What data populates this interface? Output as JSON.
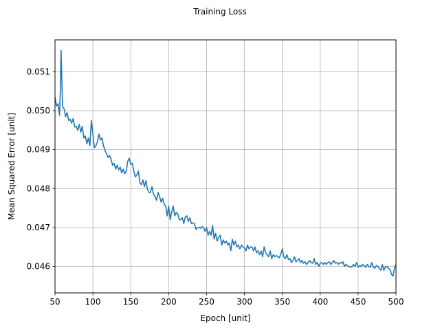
{
  "chart_data": {
    "type": "line",
    "title": "Training Loss",
    "xlabel": "Epoch [unit]",
    "ylabel": "Mean Squared Error [unit]",
    "xlim": [
      50,
      500
    ],
    "ylim": [
      0.04532,
      0.05182
    ],
    "xticks": [
      "50",
      "100",
      "150",
      "200",
      "250",
      "300",
      "350",
      "400",
      "450",
      "500"
    ],
    "yticks": [
      "0.046",
      "0.047",
      "0.048",
      "0.049",
      "0.050",
      "0.051"
    ],
    "grid": true,
    "legend": "none",
    "line_color": "#1f77b4",
    "series": [
      {
        "points": [
          [
            50,
            0.05035
          ],
          [
            52,
            0.05012
          ],
          [
            54,
            0.05018
          ],
          [
            56,
            0.04988
          ],
          [
            57,
            0.0505
          ],
          [
            58,
            0.05155
          ],
          [
            59,
            0.0508
          ],
          [
            60,
            0.0501
          ],
          [
            62,
            0.05005
          ],
          [
            64,
            0.04985
          ],
          [
            66,
            0.04995
          ],
          [
            68,
            0.04975
          ],
          [
            70,
            0.04978
          ],
          [
            72,
            0.04968
          ],
          [
            74,
            0.0498
          ],
          [
            76,
            0.04958
          ],
          [
            78,
            0.0496
          ],
          [
            80,
            0.0495
          ],
          [
            82,
            0.04965
          ],
          [
            84,
            0.04945
          ],
          [
            86,
            0.0496
          ],
          [
            88,
            0.0493
          ],
          [
            90,
            0.04935
          ],
          [
            92,
            0.04915
          ],
          [
            94,
            0.0493
          ],
          [
            96,
            0.0491
          ],
          [
            98,
            0.04975
          ],
          [
            100,
            0.0494
          ],
          [
            102,
            0.04905
          ],
          [
            104,
            0.0491
          ],
          [
            106,
            0.0492
          ],
          [
            108,
            0.0494
          ],
          [
            110,
            0.04925
          ],
          [
            112,
            0.0493
          ],
          [
            114,
            0.0491
          ],
          [
            116,
            0.04898
          ],
          [
            118,
            0.0489
          ],
          [
            120,
            0.0488
          ],
          [
            122,
            0.04885
          ],
          [
            124,
            0.04875
          ],
          [
            126,
            0.0486
          ],
          [
            128,
            0.04865
          ],
          [
            130,
            0.0485
          ],
          [
            132,
            0.0486
          ],
          [
            134,
            0.04848
          ],
          [
            136,
            0.04855
          ],
          [
            138,
            0.0484
          ],
          [
            140,
            0.0485
          ],
          [
            142,
            0.04838
          ],
          [
            144,
            0.04845
          ],
          [
            146,
            0.0487
          ],
          [
            148,
            0.04878
          ],
          [
            150,
            0.04862
          ],
          [
            152,
            0.04865
          ],
          [
            154,
            0.04845
          ],
          [
            156,
            0.0483
          ],
          [
            158,
            0.04835
          ],
          [
            160,
            0.04845
          ],
          [
            162,
            0.04815
          ],
          [
            164,
            0.0481
          ],
          [
            166,
            0.04822
          ],
          [
            168,
            0.04805
          ],
          [
            170,
            0.0482
          ],
          [
            172,
            0.04798
          ],
          [
            174,
            0.0479
          ],
          [
            176,
            0.0479
          ],
          [
            178,
            0.04805
          ],
          [
            180,
            0.04785
          ],
          [
            182,
            0.0478
          ],
          [
            184,
            0.0477
          ],
          [
            186,
            0.0479
          ],
          [
            188,
            0.0478
          ],
          [
            190,
            0.04765
          ],
          [
            192,
            0.04775
          ],
          [
            194,
            0.0476
          ],
          [
            196,
            0.04755
          ],
          [
            198,
            0.0473
          ],
          [
            200,
            0.04755
          ],
          [
            202,
            0.0472
          ],
          [
            204,
            0.0474
          ],
          [
            206,
            0.04755
          ],
          [
            208,
            0.0473
          ],
          [
            210,
            0.04738
          ],
          [
            212,
            0.04735
          ],
          [
            214,
            0.0472
          ],
          [
            216,
            0.0472
          ],
          [
            218,
            0.04725
          ],
          [
            220,
            0.0471
          ],
          [
            222,
            0.04728
          ],
          [
            224,
            0.0473
          ],
          [
            226,
            0.04715
          ],
          [
            228,
            0.04725
          ],
          [
            230,
            0.0471
          ],
          [
            232,
            0.04712
          ],
          [
            234,
            0.0471
          ],
          [
            236,
            0.04695
          ],
          [
            238,
            0.047
          ],
          [
            240,
            0.047
          ],
          [
            242,
            0.04698
          ],
          [
            244,
            0.04702
          ],
          [
            246,
            0.047
          ],
          [
            248,
            0.0469
          ],
          [
            250,
            0.047
          ],
          [
            252,
            0.0468
          ],
          [
            254,
            0.0469
          ],
          [
            256,
            0.0468
          ],
          [
            258,
            0.04705
          ],
          [
            260,
            0.0467
          ],
          [
            262,
            0.04685
          ],
          [
            264,
            0.04665
          ],
          [
            266,
            0.04675
          ],
          [
            268,
            0.0468
          ],
          [
            270,
            0.04655
          ],
          [
            272,
            0.04668
          ],
          [
            274,
            0.0466
          ],
          [
            276,
            0.04665
          ],
          [
            278,
            0.04655
          ],
          [
            280,
            0.0466
          ],
          [
            282,
            0.0464
          ],
          [
            284,
            0.0467
          ],
          [
            286,
            0.04655
          ],
          [
            288,
            0.04665
          ],
          [
            290,
            0.0465
          ],
          [
            292,
            0.04655
          ],
          [
            294,
            0.04645
          ],
          [
            296,
            0.04655
          ],
          [
            298,
            0.0465
          ],
          [
            300,
            0.04647
          ],
          [
            302,
            0.0464
          ],
          [
            304,
            0.04655
          ],
          [
            306,
            0.04645
          ],
          [
            308,
            0.0465
          ],
          [
            310,
            0.0465
          ],
          [
            312,
            0.0464
          ],
          [
            314,
            0.0465
          ],
          [
            316,
            0.04635
          ],
          [
            318,
            0.0464
          ],
          [
            320,
            0.0463
          ],
          [
            322,
            0.0464
          ],
          [
            324,
            0.04625
          ],
          [
            326,
            0.0465
          ],
          [
            328,
            0.04635
          ],
          [
            330,
            0.0463
          ],
          [
            332,
            0.04625
          ],
          [
            334,
            0.0464
          ],
          [
            336,
            0.0462
          ],
          [
            338,
            0.0463
          ],
          [
            340,
            0.04625
          ],
          [
            342,
            0.04628
          ],
          [
            344,
            0.04625
          ],
          [
            346,
            0.04622
          ],
          [
            348,
            0.04632
          ],
          [
            350,
            0.04645
          ],
          [
            352,
            0.04625
          ],
          [
            354,
            0.0462
          ],
          [
            356,
            0.0463
          ],
          [
            358,
            0.04618
          ],
          [
            360,
            0.0462
          ],
          [
            362,
            0.0461
          ],
          [
            364,
            0.04615
          ],
          [
            366,
            0.04625
          ],
          [
            368,
            0.04612
          ],
          [
            370,
            0.04615
          ],
          [
            372,
            0.0462
          ],
          [
            374,
            0.0461
          ],
          [
            376,
            0.04615
          ],
          [
            378,
            0.04608
          ],
          [
            380,
            0.04612
          ],
          [
            382,
            0.04605
          ],
          [
            384,
            0.0461
          ],
          [
            386,
            0.04615
          ],
          [
            388,
            0.0461
          ],
          [
            390,
            0.04608
          ],
          [
            392,
            0.0462
          ],
          [
            394,
            0.04605
          ],
          [
            396,
            0.0461
          ],
          [
            398,
            0.046
          ],
          [
            400,
            0.04608
          ],
          [
            402,
            0.0461
          ],
          [
            404,
            0.04605
          ],
          [
            406,
            0.0461
          ],
          [
            408,
            0.04605
          ],
          [
            410,
            0.0461
          ],
          [
            412,
            0.04612
          ],
          [
            414,
            0.04605
          ],
          [
            416,
            0.0461
          ],
          [
            418,
            0.04615
          ],
          [
            420,
            0.04608
          ],
          [
            422,
            0.0461
          ],
          [
            424,
            0.04605
          ],
          [
            426,
            0.0461
          ],
          [
            428,
            0.04608
          ],
          [
            430,
            0.04612
          ],
          [
            432,
            0.046
          ],
          [
            434,
            0.04605
          ],
          [
            436,
            0.04602
          ],
          [
            438,
            0.046
          ],
          [
            440,
            0.04598
          ],
          [
            442,
            0.046
          ],
          [
            444,
            0.04605
          ],
          [
            446,
            0.046
          ],
          [
            448,
            0.0461
          ],
          [
            450,
            0.04598
          ],
          [
            452,
            0.04602
          ],
          [
            454,
            0.046
          ],
          [
            456,
            0.04605
          ],
          [
            458,
            0.04602
          ],
          [
            460,
            0.04598
          ],
          [
            462,
            0.04605
          ],
          [
            464,
            0.046
          ],
          [
            466,
            0.04598
          ],
          [
            468,
            0.0461
          ],
          [
            470,
            0.04598
          ],
          [
            472,
            0.04595
          ],
          [
            474,
            0.04602
          ],
          [
            476,
            0.046
          ],
          [
            478,
            0.04595
          ],
          [
            480,
            0.0459
          ],
          [
            482,
            0.04605
          ],
          [
            484,
            0.0459
          ],
          [
            486,
            0.04598
          ],
          [
            488,
            0.046
          ],
          [
            490,
            0.04595
          ],
          [
            492,
            0.04592
          ],
          [
            494,
            0.0458
          ],
          [
            496,
            0.04575
          ],
          [
            498,
            0.04595
          ],
          [
            500,
            0.04605
          ]
        ]
      }
    ]
  }
}
